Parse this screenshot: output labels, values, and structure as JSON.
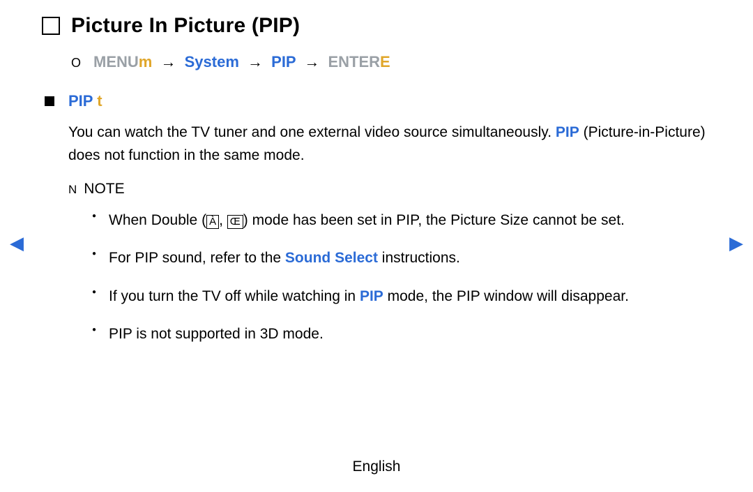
{
  "colors": {
    "blue": "#2b6bd6",
    "orange": "#e0a62a",
    "muted": "#9aa0a6",
    "black": "#000000",
    "background": "#ffffff"
  },
  "nav": {
    "left_glyph": "◀",
    "right_glyph": "▶"
  },
  "title": {
    "icon_glyph": "❏",
    "text": "Picture In Picture (PIP)"
  },
  "path": {
    "bullet": "O",
    "menu_label": "MENU",
    "menu_suffix": "m",
    "arrow": "→",
    "system": "System",
    "pip": "PIP",
    "enter_label": "ENTER",
    "enter_suffix": "E"
  },
  "section": {
    "heading_main": "PIP",
    "heading_suffix": "t",
    "para_pre": "You can watch the TV tuner and one external video source simultaneously. ",
    "para_pip": "PIP",
    "para_post": " (Picture-in-Picture) does not function in the same mode."
  },
  "note": {
    "n": "N",
    "label": "NOTE"
  },
  "bullets": [
    {
      "pre": "When Double (",
      "g1": "À",
      "mid": ", ",
      "g2": "Œ",
      "post": ") mode has been set in PIP, the Picture Size cannot be set."
    },
    {
      "pre": "For PIP sound, refer to the ",
      "link": "Sound Select",
      "post": " instructions."
    },
    {
      "pre": "If you turn the TV off while watching in ",
      "link": "PIP",
      "post": " mode, the PIP window will disappear."
    },
    {
      "pre": "PIP is not supported in 3D mode."
    }
  ],
  "footer": "English"
}
